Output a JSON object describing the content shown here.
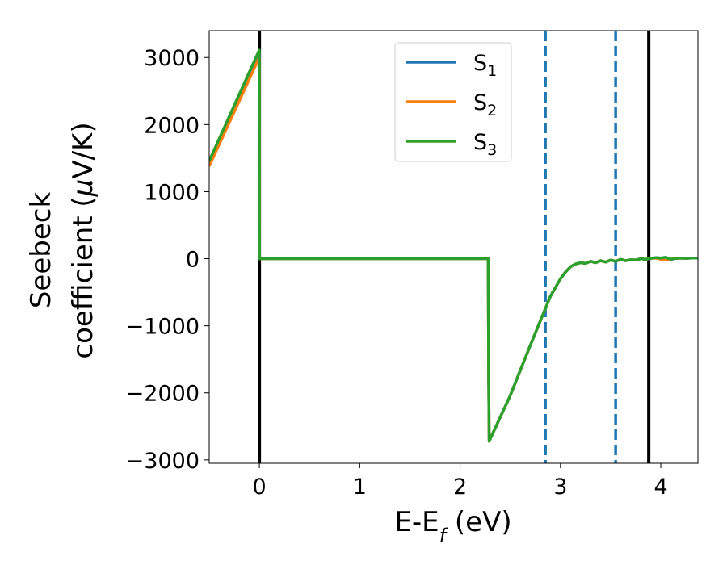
{
  "chart_data": {
    "type": "line",
    "xlabel": "E-E_f (eV)",
    "ylabel_line1": "Seebeck",
    "ylabel_line2": "coefficient  (μV/K)",
    "xlim": [
      -0.5,
      4.37
    ],
    "ylim": [
      -3050,
      3400
    ],
    "xticks": [
      0,
      1,
      2,
      3,
      4
    ],
    "yticks": [
      -3000,
      -2000,
      -1000,
      0,
      1000,
      2000,
      3000
    ],
    "xtick_labels": [
      "0",
      "1",
      "2",
      "3",
      "4"
    ],
    "ytick_labels": [
      "−3000",
      "−2000",
      "−1000",
      "0",
      "1000",
      "2000",
      "3000"
    ],
    "grid": false,
    "legend_position": "top-center",
    "vlines": [
      {
        "x": 0.0,
        "style": "solid",
        "color": "#000000"
      },
      {
        "x": 2.85,
        "style": "dashed",
        "color": "#1f77b4"
      },
      {
        "x": 3.55,
        "style": "dashed",
        "color": "#1f77b4"
      },
      {
        "x": 3.88,
        "style": "solid",
        "color": "#000000"
      }
    ],
    "series": [
      {
        "name": "S_1",
        "color": "#1f77b4",
        "x": [
          -0.5,
          -0.001,
          0.001,
          2.28,
          2.285,
          2.29,
          2.5,
          2.7,
          2.9,
          3.0,
          3.05,
          3.1,
          3.15,
          3.2,
          3.25,
          3.3,
          3.35,
          3.4,
          3.45,
          3.5,
          3.55,
          3.6,
          3.65,
          3.7,
          3.75,
          3.8,
          3.85,
          3.9,
          3.95,
          4.0,
          4.05,
          4.1,
          4.15,
          4.2,
          4.25,
          4.3,
          4.37
        ],
        "y": [
          1450,
          3080,
          0,
          0,
          -1800,
          -2720,
          -2040,
          -1290,
          -560,
          -300,
          -200,
          -120,
          -80,
          -60,
          -70,
          -40,
          -60,
          -30,
          -50,
          -20,
          -40,
          -10,
          -30,
          -15,
          -20,
          0,
          -10,
          5,
          15,
          10,
          20,
          -10,
          5,
          10,
          5,
          10,
          10
        ]
      },
      {
        "name": "S_2",
        "color": "#ff7f0e",
        "x": [
          -0.5,
          -0.001,
          0.001,
          2.28,
          2.285,
          2.29,
          2.5,
          2.7,
          2.9,
          3.0,
          3.05,
          3.1,
          3.15,
          3.2,
          3.25,
          3.3,
          3.35,
          3.4,
          3.45,
          3.5,
          3.55,
          3.6,
          3.65,
          3.7,
          3.75,
          3.8,
          3.85,
          3.9,
          3.95,
          4.0,
          4.05,
          4.1,
          4.15,
          4.2,
          4.25,
          4.3,
          4.37
        ],
        "y": [
          1380,
          3000,
          0,
          0,
          -1800,
          -2720,
          -2040,
          -1290,
          -560,
          -300,
          -200,
          -120,
          -80,
          -60,
          -70,
          -40,
          -60,
          -30,
          -50,
          -20,
          -40,
          -10,
          -30,
          -15,
          -20,
          0,
          -10,
          5,
          10,
          -10,
          -20,
          -5,
          5,
          10,
          5,
          10,
          10
        ]
      },
      {
        "name": "S_3",
        "color": "#2ca02c",
        "x": [
          -0.5,
          -0.001,
          0.001,
          2.28,
          2.285,
          2.29,
          2.5,
          2.7,
          2.9,
          3.0,
          3.05,
          3.1,
          3.15,
          3.2,
          3.25,
          3.3,
          3.35,
          3.4,
          3.45,
          3.5,
          3.55,
          3.6,
          3.65,
          3.7,
          3.75,
          3.8,
          3.85,
          3.9,
          3.95,
          4.0,
          4.05,
          4.1,
          4.15,
          4.2,
          4.25,
          4.3,
          4.37
        ],
        "y": [
          1460,
          3110,
          0,
          0,
          -1800,
          -2720,
          -2040,
          -1290,
          -560,
          -300,
          -200,
          -120,
          -80,
          -60,
          -70,
          -40,
          -60,
          -30,
          -50,
          -20,
          -40,
          -10,
          -30,
          -15,
          -20,
          0,
          -10,
          5,
          15,
          10,
          20,
          -10,
          5,
          10,
          5,
          10,
          10
        ]
      }
    ],
    "legend": [
      {
        "base": "S",
        "sub": "1",
        "color": "#1f77b4"
      },
      {
        "base": "S",
        "sub": "2",
        "color": "#ff7f0e"
      },
      {
        "base": "S",
        "sub": "3",
        "color": "#2ca02c"
      }
    ]
  }
}
